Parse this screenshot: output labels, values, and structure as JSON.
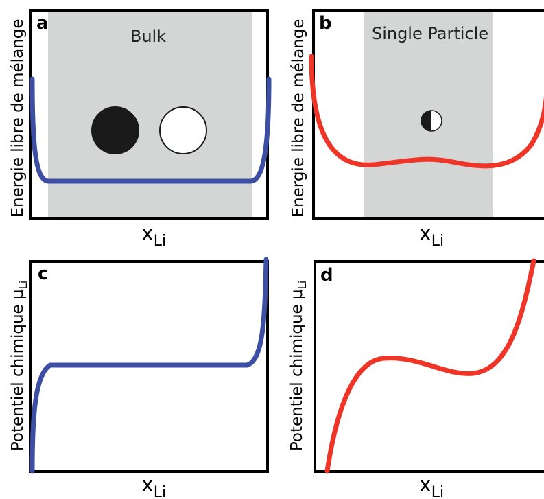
{
  "panels": {
    "a": {
      "letter": "a",
      "region_label": "Bulk",
      "ylabel": "Energie libre de mélange",
      "xlabel_main": "x",
      "xlabel_sub": "Li",
      "curve_color": "#3d4fa3",
      "shade_color": "#d4d6d6"
    },
    "b": {
      "letter": "b",
      "region_label": "Single Particle",
      "ylabel": "Energie libre de mélange",
      "xlabel_main": "x",
      "xlabel_sub": "Li",
      "curve_color": "#ee3528",
      "shade_color": "#d4d6d6"
    },
    "c": {
      "letter": "c",
      "ylabel_main": "Potentiel chimique μ",
      "ylabel_sub": "Li",
      "xlabel_main": "x",
      "xlabel_sub": "Li",
      "curve_color": "#3d4fa3"
    },
    "d": {
      "letter": "d",
      "ylabel_main": "Potentiel chimique μ",
      "ylabel_sub": "Li",
      "xlabel_main": "x",
      "xlabel_sub": "Li",
      "curve_color": "#ee3528"
    }
  },
  "markers": {
    "filled_circle_color": "#1a1a1a",
    "empty_circle_color": "#ffffff",
    "half_circle": "half-filled circle"
  }
}
